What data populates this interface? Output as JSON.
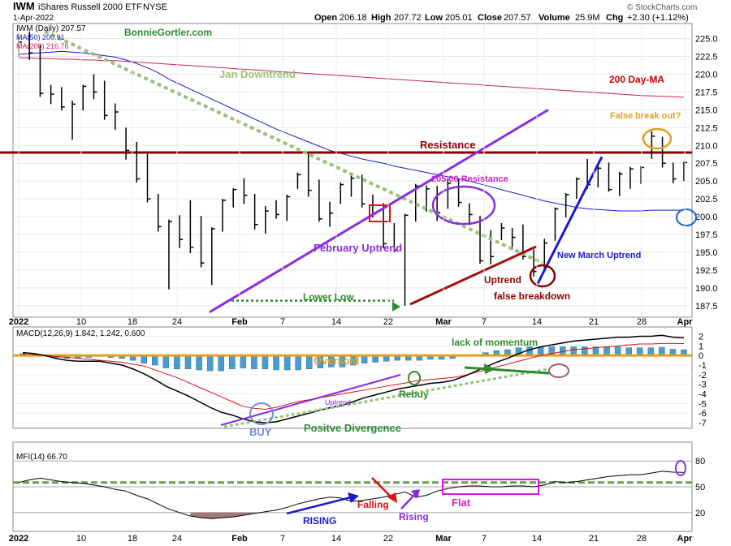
{
  "header": {
    "symbol": "IWM",
    "name": "iShares Russell 2000 ETF",
    "exchange": "NYSE",
    "date": "1-Apr-2022",
    "open_label": "Open",
    "open": "206.18",
    "high_label": "High",
    "high": "207.72",
    "low_label": "Low",
    "low": "205.01",
    "close_label": "Close",
    "close": "207.57",
    "volume_label": "Volume",
    "volume": "25.9M",
    "chg_label": "Chg",
    "chg": "+2.30 (+1.12%)",
    "watermark": "© StockCharts.com"
  },
  "legend": {
    "price": "IWM (Daily) 207.57",
    "ma50": "MA(50) 200.91",
    "ma200": "MA(200) 216.76",
    "brand": "BonnieGortler.com"
  },
  "chart_data": [
    {
      "type": "ohlc",
      "title": "IWM (Daily) 207.57",
      "ylim": [
        186,
        227
      ],
      "y_ticks": [
        187.5,
        190.0,
        192.5,
        195.0,
        197.5,
        200.0,
        202.5,
        205.0,
        207.5,
        210.0,
        212.5,
        215.0,
        217.5,
        220.0,
        222.5,
        225.0
      ],
      "x_tick_labels": [
        "2022",
        "10",
        "18",
        "24",
        "Feb",
        "7",
        "14",
        "22",
        "Mar",
        "7",
        "14",
        "21",
        "28",
        "Apr"
      ],
      "bars": [
        {
          "date": "2022-01-03",
          "high": 225.7,
          "low": 222.4,
          "close": 224.5
        },
        {
          "date": "2022-01-04",
          "high": 226.0,
          "low": 222.0,
          "close": 223.0
        },
        {
          "date": "2022-01-05",
          "high": 224.1,
          "low": 216.8,
          "close": 217.3
        },
        {
          "date": "2022-01-06",
          "high": 218.5,
          "low": 215.8,
          "close": 217.2
        },
        {
          "date": "2022-01-07",
          "high": 218.2,
          "low": 214.9,
          "close": 215.4
        },
        {
          "date": "2022-01-10",
          "high": 216.3,
          "low": 210.8,
          "close": 215.8
        },
        {
          "date": "2022-01-11",
          "high": 218.5,
          "low": 214.9,
          "close": 218.3
        },
        {
          "date": "2022-01-12",
          "high": 220.0,
          "low": 216.5,
          "close": 217.5
        },
        {
          "date": "2022-01-13",
          "high": 219.1,
          "low": 213.6,
          "close": 214.2
        },
        {
          "date": "2022-01-14",
          "high": 215.9,
          "low": 212.2,
          "close": 214.7
        },
        {
          "date": "2022-01-18",
          "high": 212.5,
          "low": 208.0,
          "close": 209.3
        },
        {
          "date": "2022-01-19",
          "high": 210.5,
          "low": 204.8,
          "close": 205.3
        },
        {
          "date": "2022-01-20",
          "high": 208.8,
          "low": 202.0,
          "close": 202.5
        },
        {
          "date": "2022-01-21",
          "high": 203.2,
          "low": 197.9,
          "close": 198.6
        },
        {
          "date": "2022-01-24",
          "high": 199.6,
          "low": 189.8,
          "close": 199.3
        },
        {
          "date": "2022-01-25",
          "high": 200.2,
          "low": 195.6,
          "close": 196.8
        },
        {
          "date": "2022-01-26",
          "high": 202.3,
          "low": 194.9,
          "close": 195.7
        },
        {
          "date": "2022-01-27",
          "high": 200.1,
          "low": 192.9,
          "close": 193.5
        },
        {
          "date": "2022-01-28",
          "high": 198.5,
          "low": 190.4,
          "close": 198.3
        },
        {
          "date": "2022-01-31",
          "high": 202.5,
          "low": 197.9,
          "close": 202.3
        },
        {
          "date": "2022-02-01",
          "high": 204.0,
          "low": 201.3,
          "close": 203.8
        },
        {
          "date": "2022-02-02",
          "high": 205.4,
          "low": 201.8,
          "close": 203.0
        },
        {
          "date": "2022-02-03",
          "high": 203.2,
          "low": 198.2,
          "close": 198.9
        },
        {
          "date": "2022-02-04",
          "high": 201.5,
          "low": 197.6,
          "close": 200.8
        },
        {
          "date": "2022-02-07",
          "high": 202.3,
          "low": 199.7,
          "close": 200.3
        },
        {
          "date": "2022-02-08",
          "high": 203.1,
          "low": 199.4,
          "close": 202.8
        },
        {
          "date": "2022-02-09",
          "high": 206.2,
          "low": 203.9,
          "close": 205.9
        },
        {
          "date": "2022-02-10",
          "high": 208.8,
          "low": 202.8,
          "close": 203.7
        },
        {
          "date": "2022-02-11",
          "high": 205.2,
          "low": 199.3,
          "close": 199.7
        },
        {
          "date": "2022-02-14",
          "high": 202.1,
          "low": 198.6,
          "close": 200.5
        },
        {
          "date": "2022-02-15",
          "high": 204.8,
          "low": 201.8,
          "close": 204.5
        },
        {
          "date": "2022-02-16",
          "high": 205.8,
          "low": 202.8,
          "close": 205.4
        },
        {
          "date": "2022-02-17",
          "high": 205.9,
          "low": 201.3,
          "close": 201.8
        },
        {
          "date": "2022-02-18",
          "high": 203.1,
          "low": 199.9,
          "close": 200.4
        },
        {
          "date": "2022-02-22",
          "high": 201.9,
          "low": 195.6,
          "close": 196.2
        },
        {
          "date": "2022-02-23",
          "high": 199.1,
          "low": 195.0,
          "close": 195.3
        },
        {
          "date": "2022-02-24",
          "high": 200.4,
          "low": 187.5,
          "close": 200.2
        },
        {
          "date": "2022-02-25",
          "high": 204.6,
          "low": 199.3,
          "close": 204.3
        },
        {
          "date": "2022-02-28",
          "high": 204.4,
          "low": 200.7,
          "close": 203.9
        },
        {
          "date": "2022-03-01",
          "high": 204.3,
          "low": 199.4,
          "close": 200.6
        },
        {
          "date": "2022-03-02",
          "high": 205.4,
          "low": 201.1,
          "close": 204.7
        },
        {
          "date": "2022-03-03",
          "high": 205.3,
          "low": 201.4,
          "close": 202.0
        },
        {
          "date": "2022-03-04",
          "high": 201.9,
          "low": 198.8,
          "close": 200.3
        },
        {
          "date": "2022-03-07",
          "high": 200.1,
          "low": 193.4,
          "close": 193.8
        },
        {
          "date": "2022-03-08",
          "high": 198.1,
          "low": 193.3,
          "close": 194.4
        },
        {
          "date": "2022-03-09",
          "high": 199.1,
          "low": 196.7,
          "close": 198.4
        },
        {
          "date": "2022-03-10",
          "high": 198.4,
          "low": 195.4,
          "close": 197.1
        },
        {
          "date": "2022-03-11",
          "high": 198.9,
          "low": 194.0,
          "close": 194.4
        },
        {
          "date": "2022-03-14",
          "high": 195.4,
          "low": 191.6,
          "close": 192.3
        },
        {
          "date": "2022-03-15",
          "high": 196.9,
          "low": 192.6,
          "close": 196.3
        },
        {
          "date": "2022-03-16",
          "high": 201.3,
          "low": 196.6,
          "close": 201.1
        },
        {
          "date": "2022-03-17",
          "high": 203.3,
          "low": 199.9,
          "close": 203.1
        },
        {
          "date": "2022-03-18",
          "high": 205.5,
          "low": 202.5,
          "close": 205.3
        },
        {
          "date": "2022-03-21",
          "high": 208.1,
          "low": 203.9,
          "close": 204.5
        },
        {
          "date": "2022-03-22",
          "high": 207.4,
          "low": 204.1,
          "close": 206.8
        },
        {
          "date": "2022-03-23",
          "high": 207.6,
          "low": 203.5,
          "close": 203.8
        },
        {
          "date": "2022-03-24",
          "high": 206.3,
          "low": 202.9,
          "close": 206.0
        },
        {
          "date": "2022-03-25",
          "high": 207.0,
          "low": 203.9,
          "close": 206.7
        },
        {
          "date": "2022-03-28",
          "high": 207.1,
          "low": 204.6,
          "close": 206.9
        },
        {
          "date": "2022-03-29",
          "high": 212.0,
          "low": 208.1,
          "close": 211.3
        },
        {
          "date": "2022-03-30",
          "high": 211.2,
          "low": 206.9,
          "close": 207.5
        },
        {
          "date": "2022-03-31",
          "high": 207.6,
          "low": 204.7,
          "close": 205.3
        },
        {
          "date": "2022-04-01",
          "high": 207.7,
          "low": 205.0,
          "close": 207.6
        }
      ],
      "ma50": [
        222.8,
        222.9,
        223.0,
        223.1,
        223.2,
        223.1,
        223.0,
        222.8,
        222.6,
        222.4,
        222.0,
        221.5,
        220.9,
        220.2,
        219.3,
        218.6,
        217.9,
        217.2,
        216.5,
        215.8,
        215.1,
        214.4,
        213.7,
        213.0,
        212.3,
        211.7,
        211.1,
        210.5,
        209.9,
        209.3,
        208.9,
        208.5,
        208.1,
        207.8,
        207.5,
        207.1,
        206.8,
        206.5,
        206.2,
        205.9,
        205.6,
        205.3,
        205.0,
        204.6,
        204.2,
        203.8,
        203.4,
        203.0,
        202.6,
        202.2,
        201.9,
        201.6,
        201.3,
        201.1,
        201.0,
        200.9,
        200.8,
        200.8,
        200.8,
        200.9,
        200.9,
        200.9,
        200.91
      ],
      "ma200": [
        222.3,
        222.3,
        222.2,
        222.2,
        222.1,
        222.1,
        222.0,
        222.0,
        221.9,
        221.9,
        221.8,
        221.7,
        221.6,
        221.5,
        221.4,
        221.3,
        221.2,
        221.1,
        221.0,
        220.9,
        220.8,
        220.7,
        220.6,
        220.5,
        220.4,
        220.3,
        220.2,
        220.1,
        220.0,
        219.9,
        219.8,
        219.7,
        219.6,
        219.5,
        219.4,
        219.3,
        219.2,
        219.1,
        219.0,
        218.9,
        218.8,
        218.7,
        218.6,
        218.5,
        218.4,
        218.3,
        218.2,
        218.1,
        218.0,
        217.9,
        217.8,
        217.7,
        217.6,
        217.5,
        217.4,
        217.3,
        217.2,
        217.1,
        217.0,
        216.95,
        216.9,
        216.83,
        216.76
      ],
      "resistance_level": 209.0
    },
    {
      "type": "macd",
      "title": "MACD(12,26,9) 1.842, 1.242, 0.600",
      "ylim": [
        -7.5,
        2.8
      ],
      "y_ticks": [
        2,
        1,
        0,
        -1,
        -2,
        -3,
        -4,
        -5,
        -6,
        -7
      ],
      "macd": [
        0.3,
        0.2,
        0.0,
        -0.3,
        -0.5,
        -0.6,
        -0.6,
        -0.6,
        -0.8,
        -1.0,
        -1.4,
        -1.9,
        -2.5,
        -3.2,
        -3.7,
        -4.2,
        -4.8,
        -5.4,
        -5.9,
        -6.2,
        -6.6,
        -6.9,
        -7.0,
        -6.9,
        -6.6,
        -6.3,
        -6.0,
        -5.7,
        -5.4,
        -5.2,
        -4.8,
        -4.4,
        -4.1,
        -3.8,
        -3.5,
        -3.3,
        -3.1,
        -2.9,
        -2.8,
        -2.6,
        -2.2,
        -1.7,
        -1.2,
        -0.7,
        -0.3,
        0.2,
        0.6,
        0.9,
        1.1,
        1.3,
        1.5,
        1.6,
        1.7,
        1.8,
        1.9,
        1.9,
        2.0,
        2.0,
        2.1,
        1.9,
        1.842
      ],
      "signal": [
        0.1,
        0.1,
        0.0,
        -0.1,
        -0.2,
        -0.3,
        -0.4,
        -0.5,
        -0.6,
        -0.7,
        -0.9,
        -1.1,
        -1.5,
        -1.9,
        -2.3,
        -2.8,
        -3.3,
        -3.8,
        -4.3,
        -4.8,
        -5.3,
        -5.5,
        -5.6,
        -5.4,
        -5.1,
        -4.8,
        -4.6,
        -4.4,
        -4.2,
        -4.0,
        -3.8,
        -3.6,
        -3.4,
        -3.2,
        -3.0,
        -2.8,
        -2.6,
        -2.5,
        -2.4,
        -2.3,
        -2.1,
        -1.8,
        -1.5,
        -1.2,
        -0.9,
        -0.6,
        -0.3,
        0.0,
        0.2,
        0.4,
        0.6,
        0.7,
        0.8,
        0.9,
        1.0,
        1.1,
        1.2,
        1.2,
        1.25,
        1.25,
        1.242
      ],
      "histogram": [
        0.2,
        0.1,
        0.0,
        -0.2,
        -0.3,
        -0.3,
        -0.2,
        -0.1,
        -0.2,
        -0.3,
        -0.5,
        -0.8,
        -1.0,
        -1.3,
        -1.4,
        -1.4,
        -1.5,
        -1.6,
        -1.6,
        -1.4,
        -1.3,
        -1.4,
        -1.4,
        -1.5,
        -1.5,
        -1.5,
        -1.4,
        -1.3,
        -1.2,
        -1.2,
        -1.0,
        -0.8,
        -0.7,
        -0.6,
        -0.5,
        -0.5,
        -0.5,
        -0.4,
        -0.4,
        -0.3,
        -0.1,
        0.1,
        0.3,
        0.5,
        0.6,
        0.8,
        0.9,
        0.9,
        0.9,
        0.9,
        0.9,
        0.9,
        0.9,
        0.9,
        0.9,
        0.8,
        0.8,
        0.8,
        0.85,
        0.65,
        0.6
      ],
      "zero_line": 0
    },
    {
      "type": "line",
      "title": "MFI(14) 66.70",
      "ylim": [
        0,
        100
      ],
      "y_ticks": [
        80,
        50,
        20
      ],
      "values": [
        55,
        58,
        60,
        58,
        56,
        55,
        54,
        52,
        50,
        47,
        45,
        40,
        36,
        30,
        24,
        20,
        16,
        14,
        13,
        14,
        15,
        17,
        19,
        21,
        23,
        26,
        30,
        33,
        36,
        38,
        37,
        33,
        34,
        36,
        38,
        41,
        44,
        38,
        40,
        45,
        48,
        50,
        51,
        51,
        50,
        50,
        51,
        51,
        50,
        52,
        56,
        55,
        56,
        58,
        60,
        62,
        63,
        64,
        64,
        66,
        68,
        67,
        66.7
      ],
      "dashed_level": 55
    }
  ],
  "annotations": {
    "jan_downtrend": "Jan Downtrend",
    "ma200_label": "200 Day-MA",
    "resistance": "Resistance",
    "resistance_205": "205.00 Resistance",
    "false_breakout": "False break out?",
    "february_uptrend": "February Uptrend",
    "lower_low": "Lower Low",
    "uptrend": "Uptrend",
    "false_breakdown": "false breakdown",
    "new_march_uptrend": "New March Uptrend",
    "oversold": "Oversold",
    "lack_of_momentum": "lack of momentum",
    "rebuy": "Rebuy",
    "macd_uptrend": "Uptrend",
    "buy": "BUY",
    "positive_divergence": "Positve Divergence",
    "rising": "RISING",
    "falling": "Falling",
    "rising2": "Rising",
    "flat": "Flat"
  },
  "colors": {
    "ma50": "#1a1acc",
    "ma200": "#cc2255",
    "resistance": "#8b0000",
    "purple": "#8a2be2",
    "green_dash": "#9ac27a",
    "dark_green": "#2e8b2e",
    "orange": "#e0a020",
    "histogram": "#4a9ccc",
    "mfi_fill": "#a07a7a"
  }
}
